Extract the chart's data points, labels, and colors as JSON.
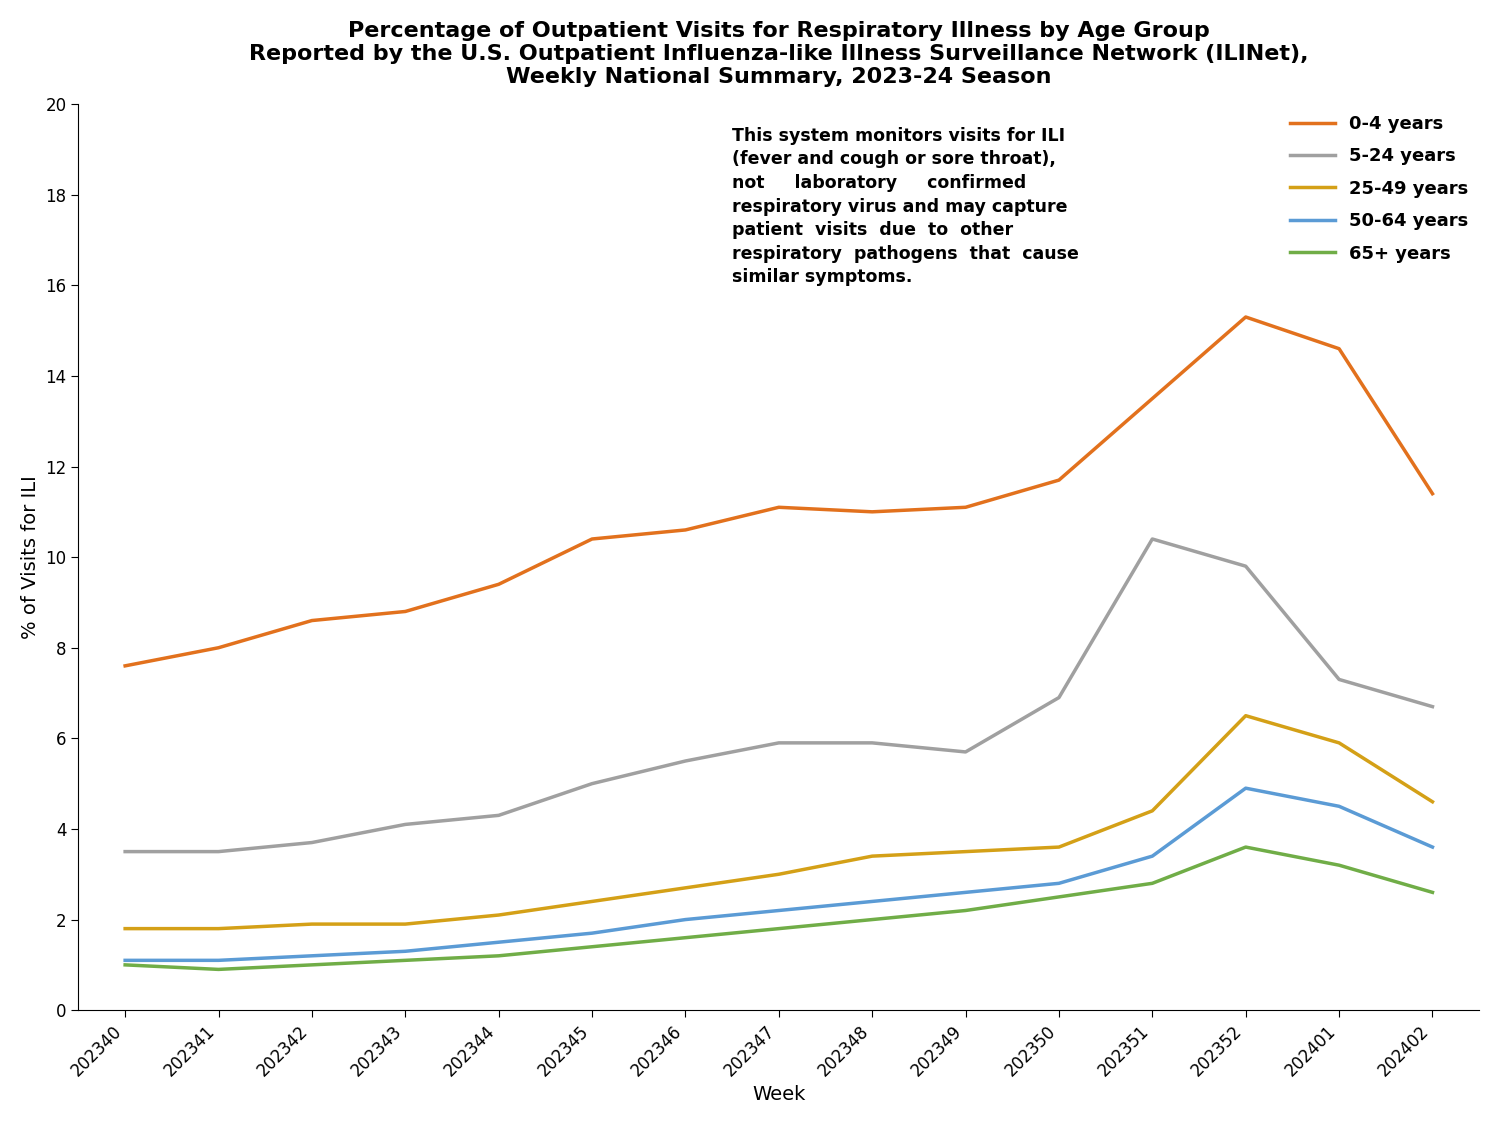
{
  "title_line1": "Percentage of Outpatient Visits for Respiratory Illness by Age Group",
  "title_line2": "Reported by the U.S. Outpatient Influenza-like Illness Surveillance Network (ILINet),",
  "title_line3": "Weekly National Summary, 2023-24 Season",
  "xlabel": "Week",
  "ylabel": "% of Visits for ILI",
  "weeks": [
    "202340",
    "202341",
    "202342",
    "202343",
    "202344",
    "202345",
    "202346",
    "202347",
    "202348",
    "202349",
    "202350",
    "202351",
    "202352",
    "202401",
    "202402"
  ],
  "series": [
    {
      "label": "0-4 years",
      "color": "#E2711D",
      "values": [
        7.6,
        8.0,
        8.6,
        8.8,
        9.4,
        10.4,
        10.6,
        11.1,
        11.0,
        11.1,
        11.7,
        13.5,
        15.3,
        14.6,
        11.4
      ]
    },
    {
      "label": "5-24 years",
      "color": "#A0A0A0",
      "values": [
        3.5,
        3.5,
        3.7,
        4.1,
        4.3,
        5.0,
        5.5,
        5.9,
        5.9,
        5.7,
        6.9,
        10.4,
        9.8,
        7.3,
        6.7
      ]
    },
    {
      "label": "25-49 years",
      "color": "#D4A017",
      "values": [
        1.8,
        1.8,
        1.9,
        1.9,
        2.1,
        2.4,
        2.7,
        3.0,
        3.4,
        3.5,
        3.6,
        4.4,
        6.5,
        5.9,
        4.6
      ]
    },
    {
      "label": "50-64 years",
      "color": "#5B9BD5",
      "values": [
        1.1,
        1.1,
        1.2,
        1.3,
        1.5,
        1.7,
        2.0,
        2.2,
        2.4,
        2.6,
        2.8,
        3.4,
        4.9,
        4.5,
        3.6
      ]
    },
    {
      "label": "65+ years",
      "color": "#70AD47",
      "values": [
        1.0,
        0.9,
        1.0,
        1.1,
        1.2,
        1.4,
        1.6,
        1.8,
        2.0,
        2.2,
        2.5,
        2.8,
        3.6,
        3.2,
        2.6
      ]
    }
  ],
  "ylim": [
    0,
    20
  ],
  "yticks": [
    0,
    2,
    4,
    6,
    8,
    10,
    12,
    14,
    16,
    18,
    20
  ],
  "annotation_text": "This system monitors visits for ILI\n(fever and cough or sore throat),\nnot     laboratory     confirmed\nrespiratory virus and may capture\npatient  visits  due  to  other\nrespiratory  pathogens  that  cause\nsimilar symptoms.",
  "title_fontsize": 16,
  "axis_label_fontsize": 14,
  "tick_fontsize": 12,
  "legend_fontsize": 13,
  "annotation_fontsize": 12.5,
  "line_width": 2.5
}
